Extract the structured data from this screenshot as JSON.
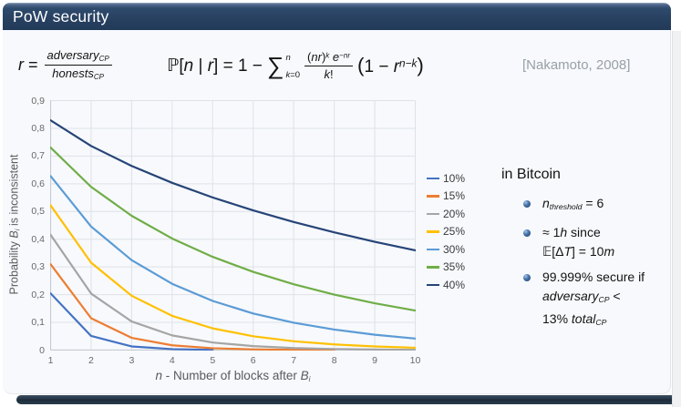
{
  "slide": {
    "title": "PoW security"
  },
  "formula": {
    "ratio_definition": {
      "lhs": [
        {
          "t": "r",
          "s": "i"
        },
        {
          "t": " = ",
          "s": ""
        }
      ],
      "numerator": [
        {
          "t": "adversary",
          "s": "i"
        },
        {
          "t": "CP",
          "s": "isub"
        }
      ],
      "denominator": [
        {
          "t": "honests",
          "s": "i"
        },
        {
          "t": "CP",
          "s": "isub"
        }
      ]
    },
    "main": {
      "prefix": [
        {
          "t": "ℙ[",
          "s": ""
        },
        {
          "t": "n",
          "s": "i"
        },
        {
          "t": " | ",
          "s": ""
        },
        {
          "t": "r",
          "s": "i"
        },
        {
          "t": "] = 1 − ",
          "s": ""
        }
      ],
      "sigma": "∑",
      "sum_upper": [
        {
          "t": "n",
          "s": "i"
        }
      ],
      "sum_lower": [
        {
          "t": "k",
          "s": "i"
        },
        {
          "t": "=0",
          "s": ""
        }
      ],
      "frac_numerator": [
        {
          "t": "(",
          "s": ""
        },
        {
          "t": "nr",
          "s": "i"
        },
        {
          "t": ")",
          "s": ""
        },
        {
          "t": "k",
          "s": "isup"
        },
        {
          "t": " e",
          "s": "i"
        },
        {
          "t": "−nr",
          "s": "isup"
        }
      ],
      "frac_denominator": [
        {
          "t": "k",
          "s": "i"
        },
        {
          "t": "!",
          "s": ""
        }
      ],
      "tail": [
        {
          "t": "(",
          "s": "big"
        },
        {
          "t": "1 − ",
          "s": ""
        },
        {
          "t": "r",
          "s": "i"
        },
        {
          "t": "n−k",
          "s": "isup"
        },
        {
          "t": ")",
          "s": "big"
        }
      ]
    },
    "citation": "[Nakamoto, 2008]"
  },
  "bitcoin": {
    "heading": "in Bitcoin",
    "items": [
      {
        "lines": [
          [
            {
              "t": "n",
              "s": "i"
            },
            {
              "t": "threshold",
              "s": "isub"
            },
            {
              "t": " = 6",
              "s": ""
            }
          ]
        ]
      },
      {
        "lines": [
          [
            {
              "t": "≈ 1",
              "s": ""
            },
            {
              "t": "h",
              "s": "i"
            },
            {
              "t": " since",
              "s": ""
            }
          ],
          [
            {
              "t": "𝔼[Δ",
              "s": ""
            },
            {
              "t": "T",
              "s": "i"
            },
            {
              "t": "] = 10",
              "s": ""
            },
            {
              "t": "m",
              "s": "i"
            }
          ]
        ]
      },
      {
        "lines": [
          [
            {
              "t": "99.999% secure if",
              "s": ""
            }
          ],
          [
            {
              "t": "adversary",
              "s": "i"
            },
            {
              "t": "CP",
              "s": "isub"
            },
            {
              "t": " <",
              "s": ""
            }
          ],
          [
            {
              "t": "13% ",
              "s": ""
            },
            {
              "t": "total",
              "s": "i"
            },
            {
              "t": "CP",
              "s": "isub"
            }
          ]
        ]
      }
    ]
  },
  "chart_data": {
    "type": "line",
    "title": "",
    "xlabel": "n - Number of blocks after Bi",
    "ylabel": "Probability Bi is inconsistent",
    "xlabel_rich": [
      {
        "t": "n",
        "s": "i"
      },
      {
        "t": " - Number of blocks after ",
        "s": ""
      },
      {
        "t": "B",
        "s": "i"
      },
      {
        "t": "i",
        "s": "isub"
      }
    ],
    "ylabel_rich": [
      {
        "t": "Probability ",
        "s": ""
      },
      {
        "t": "B",
        "s": "i"
      },
      {
        "t": "i",
        "s": "isub"
      },
      {
        "t": " is inconsistent",
        "s": ""
      }
    ],
    "x": [
      1,
      2,
      3,
      4,
      5,
      6,
      7,
      8,
      9,
      10
    ],
    "x_tick_labels": [
      "1",
      "2",
      "3",
      "4",
      "5",
      "6",
      "7",
      "8",
      "9",
      "10"
    ],
    "y_tick_labels": [
      "0",
      "0,1",
      "0,2",
      "0,3",
      "0,4",
      "0,5",
      "0,6",
      "0,7",
      "0,8",
      "0,9"
    ],
    "xlim": [
      1,
      10
    ],
    "ylim": [
      0,
      0.9
    ],
    "grid": true,
    "legend_position": "right",
    "series": [
      {
        "name": "10%",
        "color": "#4472C4",
        "values": [
          0.2046,
          0.051,
          0.0132,
          0.0035,
          0.0009
        ]
      },
      {
        "name": "15%",
        "color": "#ED7D31",
        "values": [
          0.3097,
          0.115,
          0.0442,
          0.0173,
          0.0068,
          0.0027,
          0.0011,
          0.0004
        ]
      },
      {
        "name": "20%",
        "color": "#A5A5A5",
        "values": [
          0.4159,
          0.2039,
          0.1032,
          0.053,
          0.0274,
          0.0143,
          0.0074,
          0.0039,
          0.002,
          0.0011
        ]
      },
      {
        "name": "25%",
        "color": "#FFC000",
        "values": [
          0.5223,
          0.3153,
          0.1961,
          0.1235,
          0.0784,
          0.0499,
          0.0319,
          0.0205,
          0.0131,
          0.0084
        ]
      },
      {
        "name": "30%",
        "color": "#5B9BD5",
        "values": [
          0.6277,
          0.4457,
          0.3246,
          0.2391,
          0.1774,
          0.1321,
          0.0987,
          0.074,
          0.0555,
          0.0416
        ]
      },
      {
        "name": "35%",
        "color": "#70AD47",
        "values": [
          0.7306,
          0.5888,
          0.4845,
          0.4025,
          0.3364,
          0.2822,
          0.2374,
          0.2001,
          0.1689,
          0.1427
        ]
      },
      {
        "name": "40%",
        "color": "#264478",
        "values": [
          0.8289,
          0.7364,
          0.6642,
          0.6034,
          0.5506,
          0.504,
          0.4623,
          0.4248,
          0.3908,
          0.36
        ]
      }
    ]
  },
  "theme": {
    "title_bar": "#274060",
    "slide_bg": "#f7f9fc",
    "grid_color": "#dee2e7",
    "axis_color": "#c6cbd1",
    "tick_text": "#68696b",
    "axis_title_text": "#585a5c",
    "citation_text": "#9aa0a8",
    "shadow": "#1d2c3c",
    "bullet_ball": "#2a568c"
  }
}
